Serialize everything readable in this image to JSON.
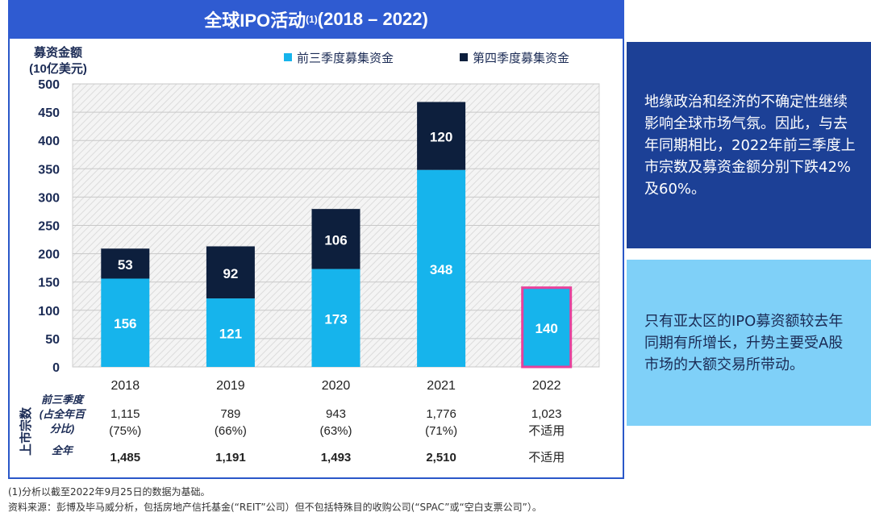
{
  "header": {
    "title": "全球IPO活动",
    "title_sup": "(1)",
    "title_years": " (2018 – 2022)"
  },
  "colors": {
    "q123": "#16b4ec",
    "q4": "#0d1f3d",
    "highlight": "#e8409a",
    "title_bg": "#2f5bd1"
  },
  "chart_data": {
    "type": "bar",
    "stacked": true,
    "title": "全球IPO活动 (2018 – 2022)",
    "ylabel": "募资金额 (10亿美元)",
    "ylabel_lines": [
      "募资金额",
      "(10亿美元)"
    ],
    "ylim": [
      0,
      500
    ],
    "yticks": [
      0,
      50,
      100,
      150,
      200,
      250,
      300,
      350,
      400,
      450,
      500
    ],
    "categories": [
      "2018",
      "2019",
      "2020",
      "2021",
      "2022"
    ],
    "series": [
      {
        "name": "前三季度募集资金",
        "values": [
          156,
          121,
          173,
          348,
          140
        ]
      },
      {
        "name": "第四季度募集资金",
        "values": [
          53,
          92,
          106,
          120,
          null
        ]
      }
    ],
    "legend": [
      "前三季度募集资金",
      "第四季度募集资金"
    ],
    "legend_position": "top"
  },
  "table": {
    "side_label": "上市宗数",
    "row1_label": [
      "前三季度",
      "(占全年百",
      "分比)"
    ],
    "row2_label": "全年",
    "q123_counts": [
      "1,115",
      "789",
      "943",
      "1,776",
      "1,023"
    ],
    "q123_pct": [
      "(75%)",
      "(66%)",
      "(63%)",
      "(71%)",
      "不适用"
    ],
    "full_year": [
      "1,485",
      "1,191",
      "1,493",
      "2,510",
      "不适用"
    ]
  },
  "commentary": {
    "box1": "地缘政治和经济的不确定性继续影响全球市场气氛。因此，与去年同期相比，2022年前三季度上市宗数及募资金额分别下跌42%及60%。",
    "box2": "只有亚太区的IPO募资额较去年同期有所增长，升势主要受A股市场的大额交易所带动。"
  },
  "footnotes": {
    "note1": "(1)分析以截至2022年9月25日的数据为基础。",
    "source": "资料来源：彭博及毕马威分析，包括房地产信托基金(“REIT”公司）但不包括特殊目的收购公司(“SPAC”或“空白支票公司”）。"
  }
}
